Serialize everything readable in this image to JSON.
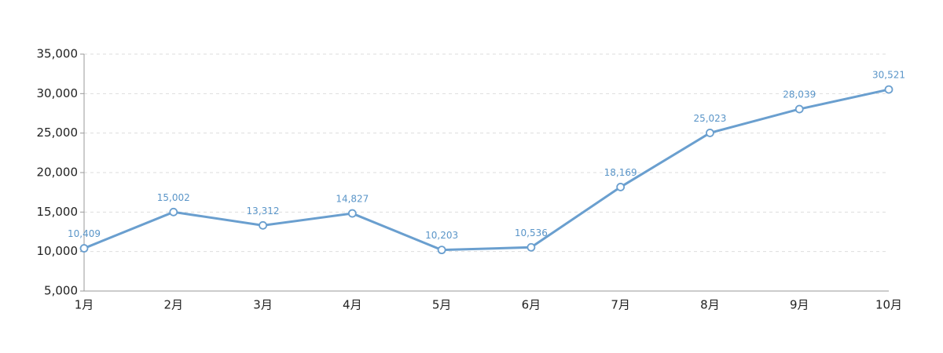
{
  "chart_data": {
    "type": "line",
    "categories": [
      "1月",
      "2月",
      "3月",
      "4月",
      "5月",
      "6月",
      "7月",
      "8月",
      "9月",
      "10月"
    ],
    "values": [
      10409,
      15002,
      13312,
      14827,
      10203,
      10536,
      18169,
      25023,
      28039,
      30521
    ],
    "value_labels": [
      "10,409",
      "15,002",
      "13,312",
      "14,827",
      "10,203",
      "10,536",
      "18,169",
      "25,023",
      "28,039",
      "30,521"
    ],
    "color": "#6a9fcf",
    "ylim": [
      5000,
      35000
    ],
    "yticks": [
      {
        "value": 5000,
        "label": "5,000"
      },
      {
        "value": 10000,
        "label": "10,000"
      },
      {
        "value": 15000,
        "label": "15,000"
      },
      {
        "value": 20000,
        "label": "20,000"
      },
      {
        "value": 25000,
        "label": "25,000"
      },
      {
        "value": 30000,
        "label": "30,000"
      },
      {
        "value": 35000,
        "label": "35,000"
      }
    ],
    "grid": true
  }
}
